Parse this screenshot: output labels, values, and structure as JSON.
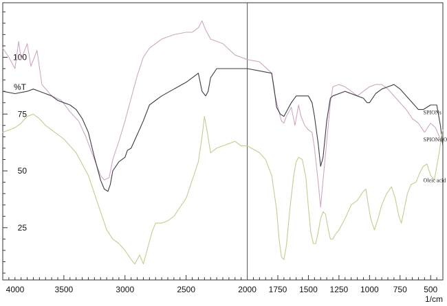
{
  "chart_data": {
    "type": "line",
    "ylabel": "%T",
    "xunit": "1/cm",
    "xlim": [
      4000,
      400
    ],
    "ylim": [
      2,
      124
    ],
    "x_ticks": [
      4000,
      3500,
      3000,
      2500,
      2000,
      1750,
      1500,
      1250,
      1000,
      750,
      500
    ],
    "y_ticks": [
      25,
      50,
      75,
      100
    ],
    "divider_x": 2000,
    "series": [
      {
        "name": "SPIONs",
        "color": "#cfa6c4",
        "label_at": [
          560,
          75
        ],
        "points": [
          [
            4000,
            104
          ],
          [
            3950,
            100
          ],
          [
            3900,
            95
          ],
          [
            3870,
            107
          ],
          [
            3850,
            99
          ],
          [
            3800,
            106
          ],
          [
            3770,
            96
          ],
          [
            3720,
            103
          ],
          [
            3680,
            88
          ],
          [
            3600,
            83
          ],
          [
            3520,
            81
          ],
          [
            3450,
            76
          ],
          [
            3380,
            72
          ],
          [
            3320,
            65
          ],
          [
            3250,
            55
          ],
          [
            3200,
            48
          ],
          [
            3170,
            46
          ],
          [
            3130,
            47
          ],
          [
            3100,
            55
          ],
          [
            3050,
            63
          ],
          [
            3000,
            72
          ],
          [
            2950,
            82
          ],
          [
            2900,
            92
          ],
          [
            2850,
            100
          ],
          [
            2800,
            104
          ],
          [
            2700,
            108
          ],
          [
            2600,
            110
          ],
          [
            2500,
            111
          ],
          [
            2450,
            111
          ],
          [
            2400,
            113
          ],
          [
            2370,
            116
          ],
          [
            2340,
            112
          ],
          [
            2300,
            108
          ],
          [
            2200,
            106
          ],
          [
            2100,
            101
          ],
          [
            2000,
            99
          ],
          [
            1900,
            98
          ],
          [
            1800,
            93
          ],
          [
            1780,
            85
          ],
          [
            1750,
            78
          ],
          [
            1720,
            72
          ],
          [
            1700,
            71
          ],
          [
            1680,
            74
          ],
          [
            1640,
            78
          ],
          [
            1610,
            70
          ],
          [
            1580,
            79
          ],
          [
            1560,
            74
          ],
          [
            1530,
            70
          ],
          [
            1500,
            68
          ],
          [
            1470,
            67
          ],
          [
            1450,
            60
          ],
          [
            1420,
            45
          ],
          [
            1400,
            34
          ],
          [
            1380,
            46
          ],
          [
            1350,
            63
          ],
          [
            1320,
            80
          ],
          [
            1300,
            87
          ],
          [
            1250,
            88
          ],
          [
            1200,
            87
          ],
          [
            1150,
            85
          ],
          [
            1100,
            83
          ],
          [
            1050,
            85
          ],
          [
            1000,
            87
          ],
          [
            950,
            88
          ],
          [
            900,
            88
          ],
          [
            850,
            86
          ],
          [
            800,
            83
          ],
          [
            750,
            80
          ],
          [
            700,
            77
          ],
          [
            650,
            73
          ],
          [
            600,
            71
          ],
          [
            550,
            67
          ],
          [
            500,
            71
          ],
          [
            460,
            69
          ],
          [
            420,
            64
          ],
          [
            400,
            62
          ]
        ]
      },
      {
        "name": "SPIONs-Oleic acid",
        "color": "#3a3a48",
        "label_at": [
          560,
          63
        ],
        "points": [
          [
            4000,
            85
          ],
          [
            3900,
            84
          ],
          [
            3800,
            85
          ],
          [
            3750,
            86
          ],
          [
            3700,
            85
          ],
          [
            3650,
            84
          ],
          [
            3600,
            83
          ],
          [
            3550,
            81
          ],
          [
            3500,
            80
          ],
          [
            3450,
            79
          ],
          [
            3400,
            77
          ],
          [
            3350,
            73
          ],
          [
            3300,
            67
          ],
          [
            3250,
            56
          ],
          [
            3200,
            46
          ],
          [
            3170,
            42
          ],
          [
            3140,
            41
          ],
          [
            3120,
            44
          ],
          [
            3100,
            50
          ],
          [
            3050,
            54
          ],
          [
            3000,
            56
          ],
          [
            2980,
            59
          ],
          [
            2950,
            60
          ],
          [
            2900,
            66
          ],
          [
            2850,
            72
          ],
          [
            2800,
            79
          ],
          [
            2700,
            83
          ],
          [
            2600,
            86
          ],
          [
            2500,
            89
          ],
          [
            2450,
            91
          ],
          [
            2400,
            93
          ],
          [
            2370,
            85
          ],
          [
            2340,
            83
          ],
          [
            2320,
            85
          ],
          [
            2300,
            91
          ],
          [
            2250,
            95
          ],
          [
            2200,
            95
          ],
          [
            2100,
            95
          ],
          [
            2000,
            95
          ],
          [
            1900,
            94
          ],
          [
            1800,
            93
          ],
          [
            1780,
            86
          ],
          [
            1760,
            78
          ],
          [
            1730,
            75
          ],
          [
            1700,
            74
          ],
          [
            1670,
            77
          ],
          [
            1640,
            80
          ],
          [
            1600,
            83
          ],
          [
            1550,
            83
          ],
          [
            1500,
            83
          ],
          [
            1470,
            80
          ],
          [
            1450,
            74
          ],
          [
            1420,
            62
          ],
          [
            1400,
            52
          ],
          [
            1380,
            56
          ],
          [
            1350,
            72
          ],
          [
            1320,
            82
          ],
          [
            1300,
            83
          ],
          [
            1200,
            85
          ],
          [
            1150,
            84
          ],
          [
            1100,
            83
          ],
          [
            1050,
            82
          ],
          [
            1020,
            80
          ],
          [
            1000,
            80
          ],
          [
            950,
            84
          ],
          [
            900,
            86
          ],
          [
            850,
            87
          ],
          [
            800,
            88
          ],
          [
            750,
            86
          ],
          [
            700,
            83
          ],
          [
            650,
            80
          ],
          [
            600,
            77
          ],
          [
            560,
            77
          ],
          [
            500,
            79
          ],
          [
            450,
            79
          ],
          [
            420,
            70
          ],
          [
            400,
            61
          ]
        ]
      },
      {
        "name": "Oleic acid",
        "color": "#c2cd8f",
        "label_at": [
          560,
          45
        ],
        "points": [
          [
            4000,
            67
          ],
          [
            3900,
            69
          ],
          [
            3850,
            71
          ],
          [
            3800,
            74
          ],
          [
            3750,
            75
          ],
          [
            3700,
            73
          ],
          [
            3650,
            70
          ],
          [
            3600,
            68
          ],
          [
            3500,
            64
          ],
          [
            3400,
            58
          ],
          [
            3300,
            48
          ],
          [
            3200,
            32
          ],
          [
            3150,
            24
          ],
          [
            3100,
            20
          ],
          [
            3050,
            18
          ],
          [
            3000,
            15
          ],
          [
            2950,
            11
          ],
          [
            2920,
            9
          ],
          [
            2900,
            11
          ],
          [
            2880,
            13
          ],
          [
            2850,
            9
          ],
          [
            2820,
            15
          ],
          [
            2780,
            23
          ],
          [
            2750,
            27
          ],
          [
            2700,
            27
          ],
          [
            2650,
            28
          ],
          [
            2600,
            30
          ],
          [
            2550,
            34
          ],
          [
            2500,
            38
          ],
          [
            2450,
            46
          ],
          [
            2400,
            54
          ],
          [
            2370,
            65
          ],
          [
            2350,
            74
          ],
          [
            2330,
            68
          ],
          [
            2300,
            58
          ],
          [
            2250,
            60
          ],
          [
            2200,
            61
          ],
          [
            2150,
            62
          ],
          [
            2100,
            63
          ],
          [
            2050,
            61
          ],
          [
            2000,
            61
          ],
          [
            1900,
            58
          ],
          [
            1850,
            55
          ],
          [
            1800,
            48
          ],
          [
            1760,
            33
          ],
          [
            1740,
            20
          ],
          [
            1720,
            12
          ],
          [
            1700,
            11
          ],
          [
            1680,
            17
          ],
          [
            1650,
            34
          ],
          [
            1620,
            48
          ],
          [
            1600,
            54
          ],
          [
            1580,
            56
          ],
          [
            1550,
            55
          ],
          [
            1520,
            47
          ],
          [
            1500,
            34
          ],
          [
            1480,
            23
          ],
          [
            1460,
            18
          ],
          [
            1440,
            18
          ],
          [
            1420,
            23
          ],
          [
            1400,
            29
          ],
          [
            1380,
            32
          ],
          [
            1360,
            31
          ],
          [
            1340,
            25
          ],
          [
            1320,
            20
          ],
          [
            1300,
            20
          ],
          [
            1280,
            22
          ],
          [
            1250,
            24
          ],
          [
            1200,
            29
          ],
          [
            1150,
            35
          ],
          [
            1100,
            37
          ],
          [
            1050,
            41
          ],
          [
            1030,
            42
          ],
          [
            1010,
            35
          ],
          [
            990,
            29
          ],
          [
            960,
            24
          ],
          [
            930,
            29
          ],
          [
            900,
            35
          ],
          [
            860,
            40
          ],
          [
            820,
            43
          ],
          [
            790,
            38
          ],
          [
            760,
            30
          ],
          [
            740,
            27
          ],
          [
            720,
            32
          ],
          [
            690,
            40
          ],
          [
            660,
            44
          ],
          [
            620,
            45
          ],
          [
            590,
            49
          ],
          [
            560,
            52
          ],
          [
            530,
            53
          ],
          [
            500,
            48
          ],
          [
            470,
            46
          ],
          [
            450,
            52
          ],
          [
            430,
            58
          ],
          [
            410,
            66
          ],
          [
            400,
            68
          ]
        ]
      }
    ]
  }
}
